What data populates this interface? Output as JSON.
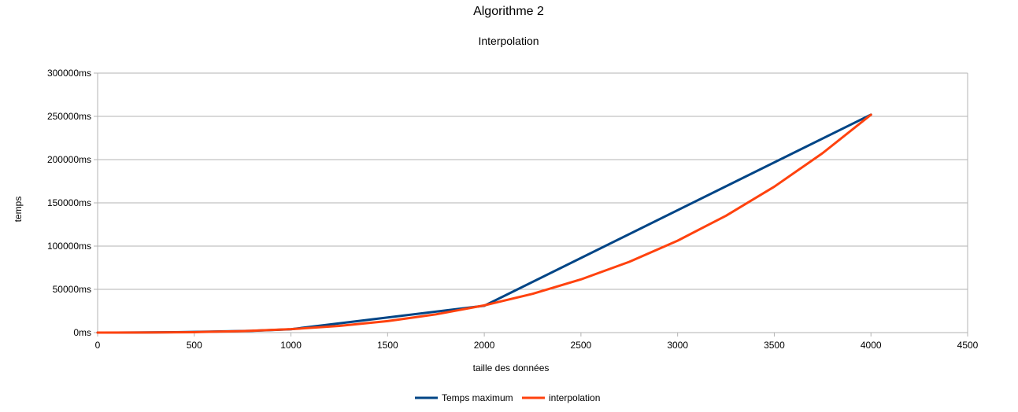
{
  "chart_data": {
    "type": "line",
    "title": "Algorithme 2",
    "subtitle": "Interpolation",
    "xlabel": "taille des données",
    "ylabel": "temps",
    "xlim": [
      0,
      4500
    ],
    "ylim": [
      0,
      300000
    ],
    "x_ticks": [
      0,
      500,
      1000,
      1500,
      2000,
      2500,
      3000,
      3500,
      4000,
      4500
    ],
    "y_ticks": [
      0,
      50000,
      100000,
      150000,
      200000,
      250000,
      300000
    ],
    "x_tick_labels": [
      "0",
      "500",
      "1000",
      "1500",
      "2000",
      "2500",
      "3000",
      "3500",
      "4000",
      "4500"
    ],
    "y_tick_labels": [
      "0ms",
      "50000ms",
      "100000ms",
      "150000ms",
      "200000ms",
      "250000ms",
      "300000ms"
    ],
    "grid": "horizontal",
    "legend_position": "bottom",
    "series": [
      {
        "name": "Temps maximum",
        "color": "#004586",
        "x": [
          0,
          100,
          200,
          400,
          500,
          800,
          1000,
          2000,
          4000
        ],
        "y": [
          0,
          30,
          130,
          500,
          800,
          2000,
          3900,
          31000,
          252000
        ]
      },
      {
        "name": "interpolation",
        "color": "#ff420e",
        "x": [
          0,
          250,
          500,
          750,
          1000,
          1250,
          1500,
          1750,
          2000,
          2250,
          2500,
          2750,
          3000,
          3250,
          3500,
          3750,
          4000
        ],
        "y": [
          0,
          61,
          492,
          1660,
          3935,
          7686,
          13281,
          21090,
          31481,
          44823,
          61484,
          81835,
          106243,
          135078,
          168709,
          207505,
          251834
        ]
      }
    ]
  }
}
